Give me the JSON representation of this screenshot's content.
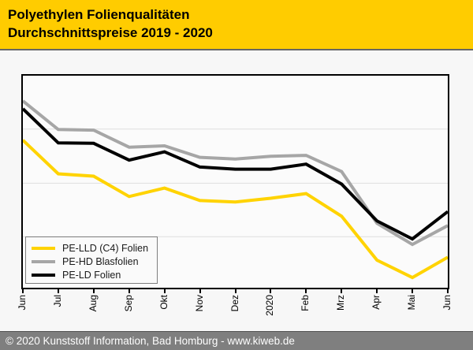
{
  "header": {
    "title_line1": "Polyethylen Folienqualitäten",
    "title_line2": "Durchschnittspreise 2019 - 2020",
    "background_color": "#FFCC00"
  },
  "chart_data": {
    "type": "line",
    "title": "Polyethylen Folienqualitäten Durchschnittspreise 2019 - 2020",
    "x_tick_labels": [
      "Jun",
      "Jul",
      "Aug",
      "Sep",
      "Okt",
      "Nov",
      "Dez",
      "2020",
      "Feb",
      "Mrz",
      "Apr",
      "Mai",
      "Jun"
    ],
    "y_axis": {
      "tick_labels_visible": false,
      "units": "percent-of-plot-height (no numeric price labels shown in chart)",
      "range": [
        0,
        100
      ]
    },
    "grid": "horizontal",
    "gridline_fractions_from_top": [
      0.252,
      0.507,
      0.759
    ],
    "gridline_color": "#dedede",
    "legend_position": "bottom-left",
    "series": [
      {
        "name": "PE-LLD (C4) Folien",
        "color": "#FFD300",
        "values": [
          69.6,
          53.7,
          52.6,
          43.0,
          47.0,
          41.1,
          40.4,
          42.2,
          44.4,
          33.7,
          13.0,
          4.8,
          14.4
        ]
      },
      {
        "name": "PE-HD Blasfolien",
        "color": "#A6A6A6",
        "values": [
          88.1,
          74.6,
          74.3,
          66.3,
          66.9,
          61.5,
          60.7,
          62.0,
          62.4,
          54.8,
          30.4,
          20.4,
          29.3
        ]
      },
      {
        "name": "PE-LD Folien",
        "color": "#000000",
        "values": [
          84.4,
          68.3,
          68.1,
          60.2,
          64.1,
          56.9,
          55.9,
          55.9,
          58.3,
          48.9,
          31.5,
          23.0,
          35.9
        ]
      }
    ]
  },
  "footer": {
    "text": "© 2020 Kunststoff Information, Bad Homburg - www.kiweb.de"
  }
}
